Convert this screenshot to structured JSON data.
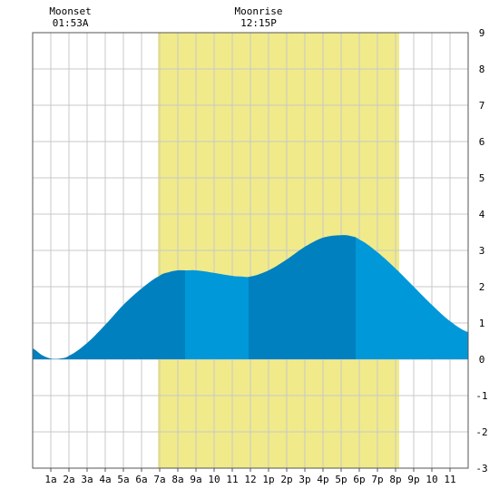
{
  "chart_data": {
    "type": "area",
    "title": "",
    "xlabel": "",
    "ylabel": "",
    "x_unit": "hour of day",
    "xlim": [
      0,
      24
    ],
    "ylim": [
      -3,
      9
    ],
    "y_ticks": [
      -3,
      -2,
      -1,
      0,
      1,
      2,
      3,
      4,
      5,
      6,
      7,
      8,
      9
    ],
    "x_tick_hours": [
      1,
      2,
      3,
      4,
      5,
      6,
      7,
      8,
      9,
      10,
      11,
      12,
      13,
      14,
      15,
      16,
      17,
      18,
      19,
      20,
      21,
      22,
      23
    ],
    "x_tick_labels": [
      "1a",
      "2a",
      "3a",
      "4a",
      "5a",
      "6a",
      "7a",
      "8a",
      "9a",
      "10",
      "11",
      "12",
      "1p",
      "2p",
      "3p",
      "4p",
      "5p",
      "6p",
      "7p",
      "8p",
      "9p",
      "10",
      "11"
    ],
    "grid": true,
    "daylight_band": {
      "start_hour": 6.9,
      "end_hour": 20.2,
      "color": "#f0ea8a"
    },
    "annotations": [
      {
        "label": "Moonset",
        "time": "01:53A",
        "hour": 1.88
      },
      {
        "label": "Moonrise",
        "time": "12:15P",
        "hour": 12.25
      }
    ],
    "series": [
      {
        "x": [
          0,
          0.5,
          1,
          1.5,
          2,
          3,
          4,
          5,
          6,
          7,
          7.5,
          8,
          8.5,
          9,
          10,
          11,
          11.5,
          12,
          13,
          14,
          15,
          16,
          17,
          17.5,
          18,
          19,
          20,
          21,
          22,
          23,
          24
        ],
        "values": [
          0.3,
          0.12,
          0.02,
          0.02,
          0.1,
          0.45,
          0.95,
          1.5,
          1.95,
          2.3,
          2.4,
          2.45,
          2.45,
          2.45,
          2.38,
          2.3,
          2.28,
          2.28,
          2.45,
          2.75,
          3.1,
          3.35,
          3.42,
          3.4,
          3.3,
          2.95,
          2.5,
          2.0,
          1.5,
          1.05,
          0.75
        ]
      }
    ],
    "fill_segments": [
      {
        "start_hour": 0,
        "end_hour": 8.4,
        "color": "#0080bf"
      },
      {
        "start_hour": 8.4,
        "end_hour": 11.9,
        "color": "#0098d8"
      },
      {
        "start_hour": 11.9,
        "end_hour": 17.8,
        "color": "#0080bf"
      },
      {
        "start_hour": 17.8,
        "end_hour": 24,
        "color": "#0098d8"
      }
    ],
    "colors": {
      "grid": "#c8c8c8",
      "axis": "#555555",
      "background": "#ffffff"
    }
  }
}
